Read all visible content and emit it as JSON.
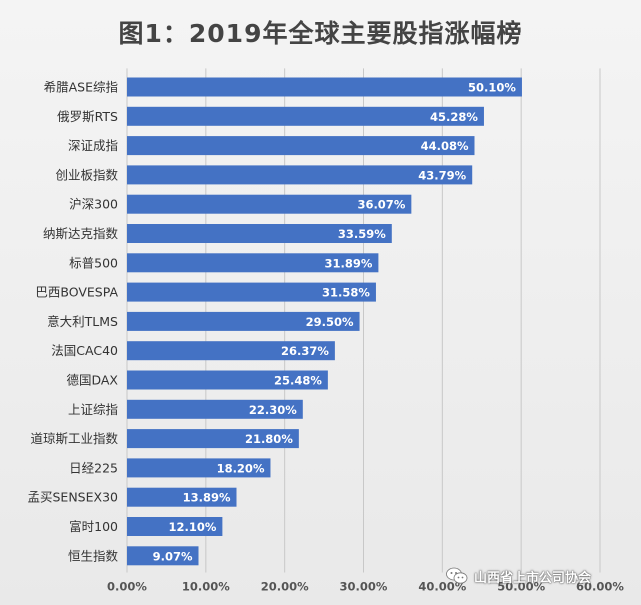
{
  "title": "图1：2019年全球主要股指涨幅榜",
  "watermark": {
    "text": "山西省上市公司协会",
    "icon": "wechat-icon"
  },
  "colors": {
    "bar": "#4472c4",
    "grid": "#c8c8c8",
    "text": "#333333"
  },
  "chart_data": {
    "type": "bar",
    "orientation": "horizontal",
    "title": "图1：2019年全球主要股指涨幅榜",
    "xlabel": "",
    "ylabel": "",
    "xlim": [
      0,
      60
    ],
    "grid": true,
    "categories": [
      "希腊ASE综指",
      "俄罗斯RTS",
      "深证成指",
      "创业板指数",
      "沪深300",
      "纳斯达克指数",
      "标普500",
      "巴西BOVESPA",
      "意大利TLMS",
      "法国CAC40",
      "德国DAX",
      "上证综指",
      "道琼斯工业指数",
      "日经225",
      "孟买SENSEX30",
      "富时100",
      "恒生指数"
    ],
    "values": [
      50.1,
      45.28,
      44.08,
      43.79,
      36.07,
      33.59,
      31.89,
      31.58,
      29.5,
      26.37,
      25.48,
      22.3,
      21.8,
      18.2,
      13.89,
      12.1,
      9.07
    ],
    "value_labels": [
      "50.10%",
      "45.28%",
      "44.08%",
      "43.79%",
      "36.07%",
      "33.59%",
      "31.89%",
      "31.58%",
      "29.50%",
      "26.37%",
      "25.48%",
      "22.30%",
      "21.80%",
      "18.20%",
      "13.89%",
      "12.10%",
      "9.07%"
    ],
    "ticks": [
      0,
      10,
      20,
      30,
      40,
      50,
      60
    ],
    "tick_labels": [
      "0.00%",
      "10.00%",
      "20.00%",
      "30.00%",
      "40.00%",
      "50.00%",
      "60.00%"
    ]
  }
}
